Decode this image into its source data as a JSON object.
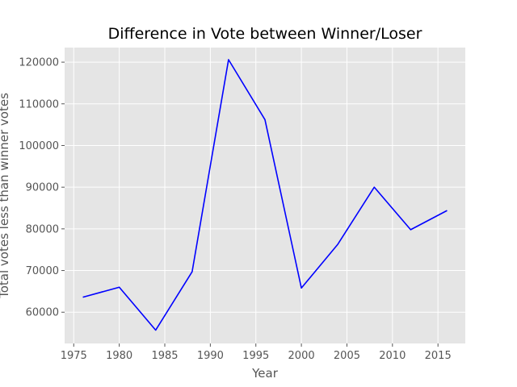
{
  "chart_data": {
    "type": "line",
    "title": "Difference in Vote between Winner/Loser",
    "xlabel": "Year",
    "ylabel": "Total votes less than winner votes",
    "x": [
      1976,
      1980,
      1984,
      1988,
      1992,
      1996,
      2000,
      2004,
      2008,
      2012,
      2016
    ],
    "series": [
      {
        "values": [
          63600,
          66000,
          55700,
          69700,
          120600,
          106200,
          65800,
          76300,
          90000,
          79800,
          84400
        ],
        "color": "#0000ff"
      }
    ],
    "xlim": [
      1974.0,
      2018.0
    ],
    "ylim": [
      52500,
      123500
    ],
    "xticks": [
      1975,
      1980,
      1985,
      1990,
      1995,
      2000,
      2005,
      2010,
      2015
    ],
    "xtick_labels": [
      "1975",
      "1980",
      "1985",
      "1990",
      "1995",
      "2000",
      "2005",
      "2010",
      "2015"
    ],
    "yticks": [
      60000,
      70000,
      80000,
      90000,
      100000,
      110000,
      120000
    ],
    "ytick_labels": [
      "60000",
      "70000",
      "80000",
      "90000",
      "100000",
      "110000",
      "120000"
    ],
    "grid": true,
    "style": "ggplot",
    "colors": {
      "background": "#e5e5e5",
      "grid": "#ffffff",
      "line": "#0000ff",
      "text": "#555555"
    }
  }
}
